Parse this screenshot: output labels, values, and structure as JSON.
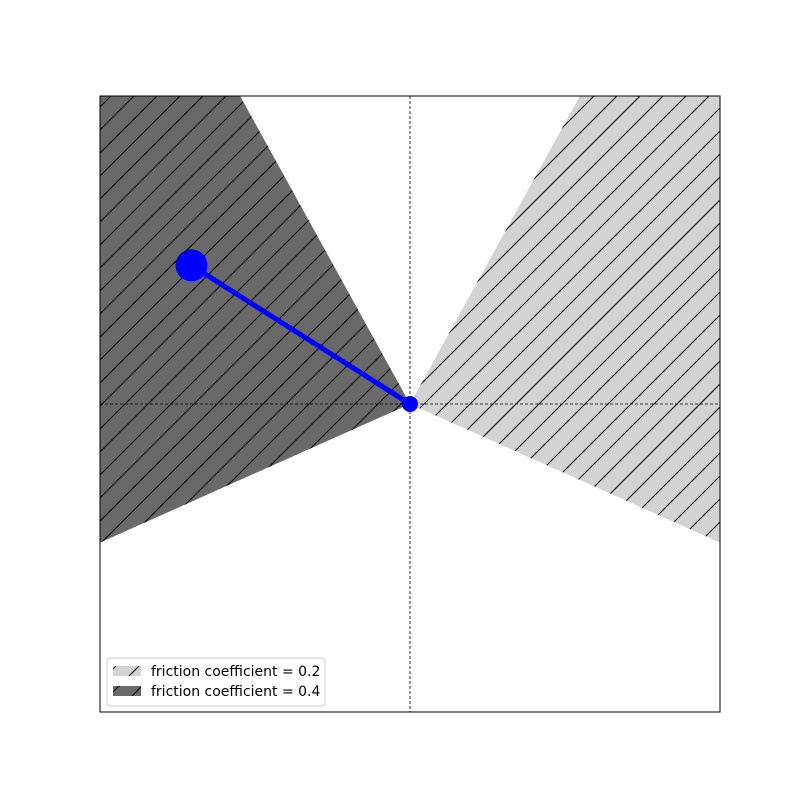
{
  "chart_data": {
    "type": "area",
    "title": "",
    "xlabel": "",
    "ylabel": "",
    "xlim": [
      -1,
      1
    ],
    "ylim": [
      -1,
      1
    ],
    "grid": false,
    "axis_ticks_visible": false,
    "reference_lines": [
      {
        "orientation": "vertical",
        "value": 0,
        "style": "dashed"
      },
      {
        "orientation": "horizontal",
        "value": 0,
        "style": "dashed"
      }
    ],
    "legend_position": "lower-left",
    "series": [
      {
        "name": "friction coefficient = 0.2",
        "kind": "filled-region",
        "fill_color": "#d3d3d3",
        "hatch": "/",
        "polygon": [
          [
            0,
            0
          ],
          [
            0.548,
            1.0
          ],
          [
            1.0,
            1.0
          ],
          [
            1.0,
            -0.45
          ]
        ]
      },
      {
        "name": "friction coefficient = 0.4",
        "kind": "filled-region",
        "fill_color": "#696969",
        "hatch": "/",
        "polygon": [
          [
            0,
            0
          ],
          [
            -1.0,
            -0.45
          ],
          [
            -1.0,
            1.0
          ],
          [
            -0.548,
            1.0
          ]
        ]
      },
      {
        "name": "",
        "kind": "segment",
        "color": "#0000ff",
        "points": [
          [
            0,
            0
          ],
          [
            -0.705,
            0.45
          ]
        ]
      }
    ],
    "markers": [
      {
        "role": "pivot",
        "x": 0,
        "y": 0,
        "color": "#0000ff",
        "size": "small"
      },
      {
        "role": "mass",
        "x": -0.705,
        "y": 0.45,
        "color": "#0000ff",
        "size": "large"
      }
    ]
  }
}
